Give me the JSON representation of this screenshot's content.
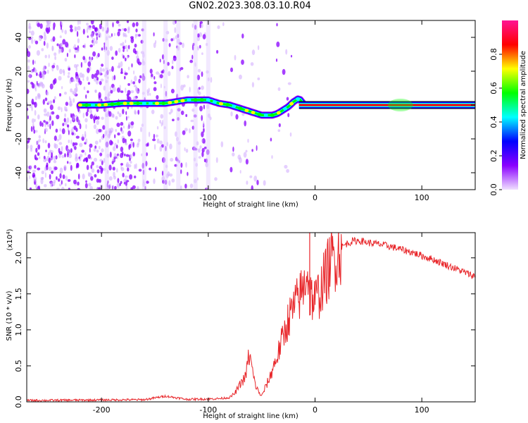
{
  "title": "GN02.2023.308.03.10.R04",
  "chart_data": [
    {
      "type": "heatmap",
      "xlabel": "Height of straight line (km)",
      "ylabel": "Frequency (Hz)",
      "xlim": [
        -270,
        150
      ],
      "ylim": [
        -50,
        50
      ],
      "x_ticks": [
        "-200",
        "-100",
        "0",
        "100"
      ],
      "y_ticks": [
        "-40",
        "-20",
        "0",
        "20",
        "40"
      ],
      "colorbar": {
        "label": "Normalized spectral amplitude",
        "range": [
          0,
          1
        ],
        "ticks": [
          "0.0",
          "0.2",
          "0.4",
          "0.6",
          "0.8"
        ],
        "colors": [
          "#f0e0ff",
          "#8a00ff",
          "#0000ff",
          "#00ffff",
          "#00ff00",
          "#ffff00",
          "#ff0000",
          "#ff1493"
        ]
      },
      "ridge": {
        "x": [
          -220,
          -200,
          -180,
          -160,
          -140,
          -120,
          -110,
          -100,
          -90,
          -80,
          -70,
          -60,
          -50,
          -40,
          -35,
          -30,
          -25,
          -20,
          -15,
          -10,
          0,
          50,
          100,
          150
        ],
        "frequency": [
          0,
          0,
          1,
          1,
          1,
          3,
          3,
          3,
          1,
          0,
          -2,
          -4,
          -6,
          -6,
          -5,
          -3,
          -1,
          2,
          4,
          0,
          0,
          0,
          0,
          0
        ]
      }
    },
    {
      "type": "line",
      "xlabel": "Height of straight line (km)",
      "ylabel": "SNR (10 * v/v)",
      "y_multiplier": "(x10",
      "y_multiplier_exp": "4",
      "y_multiplier_close": ")",
      "xlim": [
        -270,
        150
      ],
      "ylim": [
        0,
        23500
      ],
      "x_ticks": [
        "-200",
        "-100",
        "0",
        "100"
      ],
      "y_ticks": [
        "0.0",
        "0.5",
        "1.0",
        "1.5",
        "2.0"
      ],
      "color": "#e8262a",
      "series": [
        {
          "x": [
            -270,
            -240,
            -200,
            -160,
            -140,
            -120,
            -100,
            -90,
            -80,
            -75,
            -70,
            -65,
            -62,
            -60,
            -57,
            -55,
            -52,
            -50,
            -48,
            -45,
            -42,
            -40,
            -35,
            -30,
            -25,
            -20,
            -15,
            -10,
            -8,
            -5,
            -3,
            0,
            5,
            10,
            15,
            20,
            25,
            30,
            35,
            40,
            45,
            50,
            60,
            70,
            80,
            90,
            100,
            110,
            120,
            130,
            140,
            150
          ],
          "y": [
            200,
            220,
            260,
            300,
            800,
            350,
            400,
            450,
            600,
            1200,
            2500,
            3500,
            6500,
            5500,
            3000,
            2000,
            1200,
            800,
            1500,
            2500,
            3500,
            4500,
            6500,
            9000,
            11500,
            13000,
            14500,
            16000,
            19000,
            15500,
            14500,
            14000,
            15500,
            17500,
            19500,
            20500,
            21500,
            22000,
            22300,
            22400,
            22300,
            22100,
            21900,
            21600,
            21200,
            20800,
            20300,
            19800,
            19200,
            18600,
            18000,
            17400
          ]
        }
      ]
    }
  ]
}
